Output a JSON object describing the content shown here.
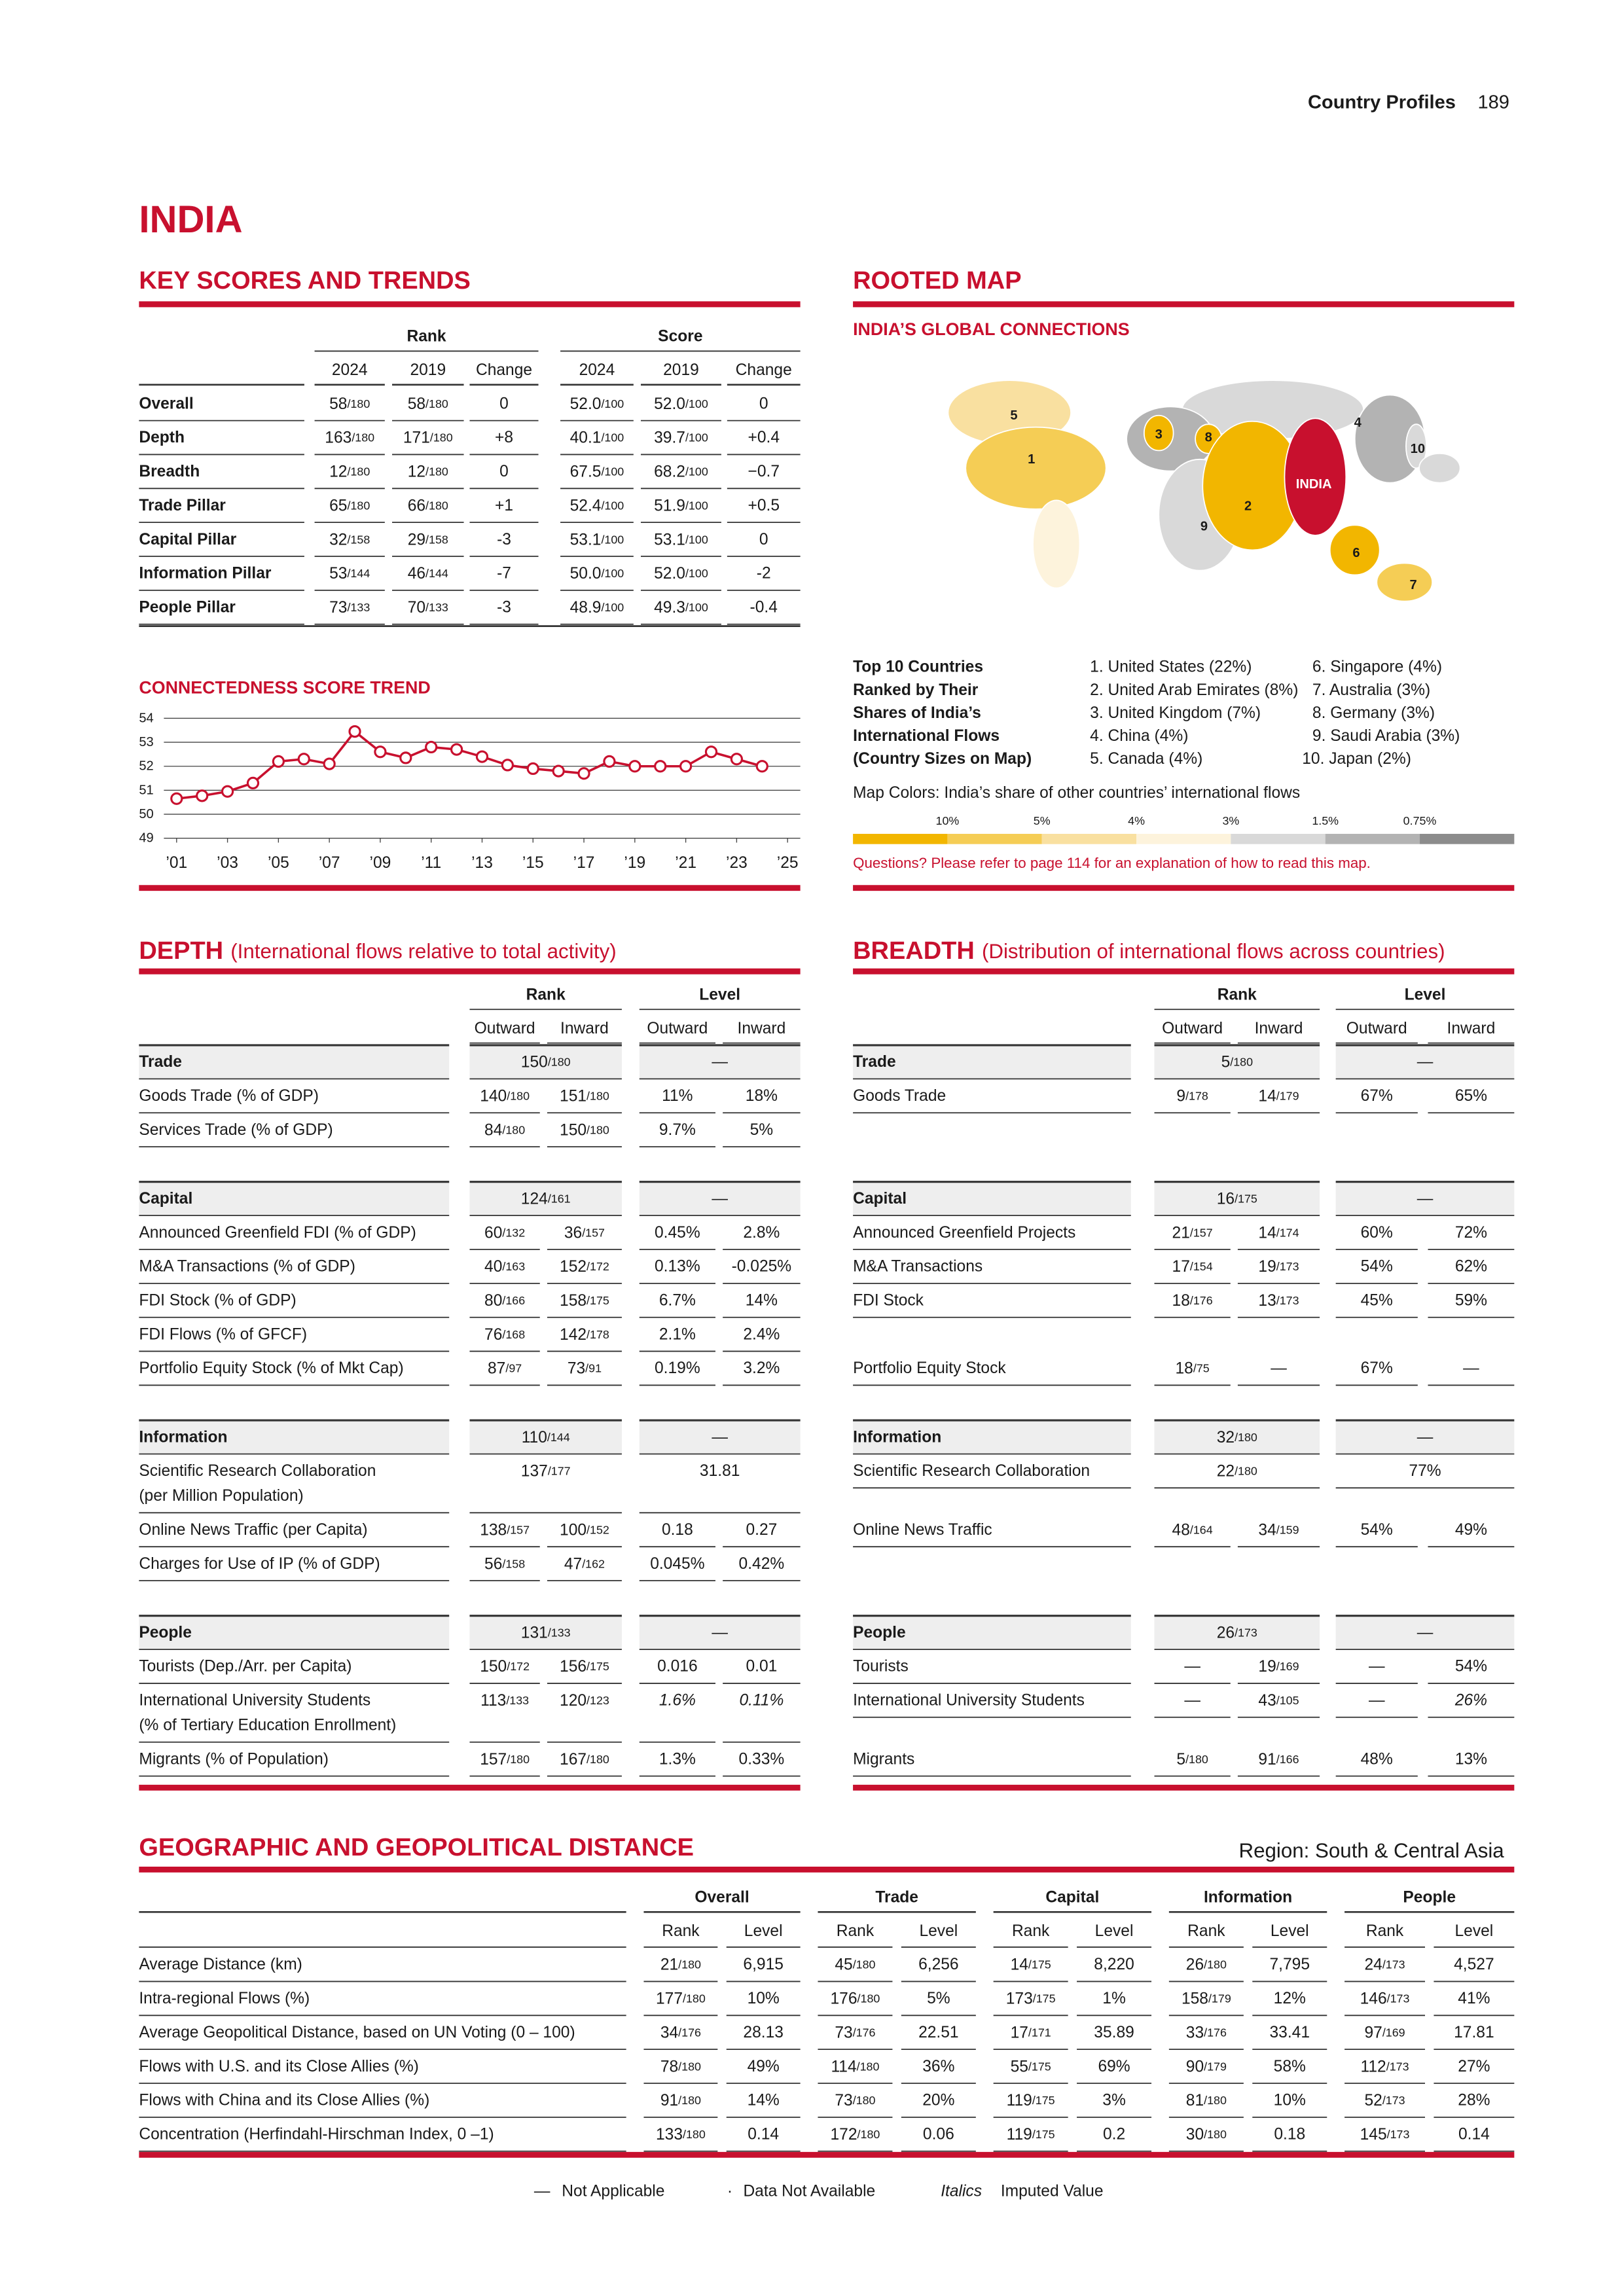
{
  "header": {
    "section": "Country Profiles",
    "page": "189",
    "country": "INDIA"
  },
  "key_scores": {
    "title": "KEY SCORES AND TRENDS",
    "groups": [
      "Rank",
      "Score"
    ],
    "columns": [
      "2024",
      "2019",
      "Change",
      "2024",
      "2019",
      "Change"
    ],
    "rows": [
      {
        "label": "Overall",
        "cells": [
          "58/180",
          "58/180",
          "0",
          "52.0/100",
          "52.0/100",
          "0"
        ]
      },
      {
        "label": "Depth",
        "cells": [
          "163/180",
          "171/180",
          "+8",
          "40.1/100",
          "39.7/100",
          "+0.4"
        ]
      },
      {
        "label": "Breadth",
        "cells": [
          "12/180",
          "12/180",
          "0",
          "67.5/100",
          "68.2/100",
          "−0.7"
        ]
      },
      {
        "label": "Trade Pillar",
        "cells": [
          "65/180",
          "66/180",
          "+1",
          "52.4/100",
          "51.9/100",
          "+0.5"
        ]
      },
      {
        "label": "Capital Pillar",
        "cells": [
          "32/158",
          "29/158",
          "-3",
          "53.1/100",
          "53.1/100",
          "0"
        ]
      },
      {
        "label": "Information Pillar",
        "cells": [
          "53/144",
          "46/144",
          "-7",
          "50.0/100",
          "52.0/100",
          "-2"
        ]
      },
      {
        "label": "People Pillar",
        "cells": [
          "73/133",
          "70/133",
          "-3",
          "48.9/100",
          "49.3/100",
          "-0.4"
        ]
      }
    ]
  },
  "chart_data": {
    "type": "line",
    "title": "CONNECTEDNESS SCORE TREND",
    "x": [
      2001,
      2002,
      2003,
      2004,
      2005,
      2006,
      2007,
      2008,
      2009,
      2010,
      2011,
      2012,
      2013,
      2014,
      2015,
      2016,
      2017,
      2018,
      2019,
      2020,
      2021,
      2022,
      2023,
      2024
    ],
    "series": [
      {
        "name": "Connectedness Score",
        "color": "#c8102e",
        "values": [
          50.65,
          50.77,
          50.95,
          51.3,
          52.2,
          52.3,
          52.1,
          53.45,
          52.6,
          52.35,
          52.8,
          52.7,
          52.4,
          52.05,
          51.9,
          51.8,
          51.7,
          52.2,
          52.0,
          52.0,
          52.0,
          52.6,
          52.3,
          52.0
        ]
      }
    ],
    "xlim": [
      2000.5,
      2025.5
    ],
    "xticks": [
      {
        "value": 2001,
        "label": "’01"
      },
      {
        "value": 2003,
        "label": "’03"
      },
      {
        "value": 2005,
        "label": "’05"
      },
      {
        "value": 2007,
        "label": "’07"
      },
      {
        "value": 2009,
        "label": "’09"
      },
      {
        "value": 2011,
        "label": "’11"
      },
      {
        "value": 2013,
        "label": "’13"
      },
      {
        "value": 2015,
        "label": "’15"
      },
      {
        "value": 2017,
        "label": "’17"
      },
      {
        "value": 2019,
        "label": "’19"
      },
      {
        "value": 2021,
        "label": "’21"
      },
      {
        "value": 2023,
        "label": "’23"
      },
      {
        "value": 2025,
        "label": "’25"
      }
    ],
    "ylim": [
      49,
      54
    ],
    "yticks": [
      49,
      50,
      51,
      52,
      53,
      54
    ],
    "grid": true
  },
  "rooted_map": {
    "title": "ROOTED MAP",
    "subtitle": "INDIA’S GLOBAL CONNECTIONS",
    "map_labels": [
      "1",
      "2",
      "3",
      "4",
      "5",
      "6",
      "7",
      "8",
      "9",
      "10"
    ],
    "map_country": "INDIA",
    "legend_title": [
      "Top 10 Countries",
      "Ranked by Their",
      "Shares of India’s",
      "International Flows",
      "(Country Sizes on Map)"
    ],
    "top10": [
      "1. United States (22%)",
      "2. United Arab Emirates (8%)",
      "3. United Kingdom (7%)",
      "4. China (4%)",
      "5. Canada (4%)",
      "6. Singapore (4%)",
      "7. Australia (3%)",
      "8. Germany (3%)",
      "9. Saudi Arabia (3%)",
      "10. Japan (2%)"
    ],
    "colors_title": "Map Colors: India’s share of other countries’ international flows",
    "scale_colors": [
      "#f2b600",
      "#f5cd55",
      "#f9e0a0",
      "#fdf3dc",
      "#d9d9d9",
      "#b3b3b3",
      "#8c8c8c"
    ],
    "scale_labels": [
      "10%",
      "5%",
      "4%",
      "3%",
      "1.5%",
      "0.75%"
    ],
    "note": "Questions? Please refer to page 114 for an explanation of how to read this map."
  },
  "depth": {
    "title": "DEPTH",
    "subtitle": "(International flows relative to total activity)",
    "groups": [
      "Rank",
      "Level"
    ],
    "columns": [
      "Outward",
      "Inward",
      "Outward",
      "Inward"
    ],
    "sections": [
      {
        "name": "Trade",
        "rank": "150/180",
        "level": "—",
        "rows": [
          {
            "label": [
              "Goods Trade (% of GDP)"
            ],
            "cells": [
              "140/180",
              "151/180",
              "11%",
              "18%"
            ]
          },
          {
            "label": [
              "Services Trade (% of GDP)"
            ],
            "cells": [
              "84/180",
              "150/180",
              "9.7%",
              "5%"
            ]
          }
        ]
      },
      {
        "name": "Capital",
        "rank": "124/161",
        "level": "—",
        "rows": [
          {
            "label": [
              "Announced Greenfield FDI (% of GDP)"
            ],
            "cells": [
              "60/132",
              "36/157",
              "0.45%",
              "2.8%"
            ]
          },
          {
            "label": [
              "M&A Transactions (% of GDP)"
            ],
            "cells": [
              "40/163",
              "152/172",
              "0.13%",
              "-0.025%"
            ]
          },
          {
            "label": [
              "FDI Stock (% of GDP)"
            ],
            "cells": [
              "80/166",
              "158/175",
              "6.7%",
              "14%"
            ]
          },
          {
            "label": [
              "FDI Flows (% of GFCF)"
            ],
            "cells": [
              "76/168",
              "142/178",
              "2.1%",
              "2.4%"
            ]
          },
          {
            "label": [
              "Portfolio Equity Stock (% of Mkt Cap)"
            ],
            "cells": [
              "87/97",
              "73/91",
              "0.19%",
              "3.2%"
            ]
          }
        ]
      },
      {
        "name": "Information",
        "rank": "110/144",
        "level": "—",
        "rows": [
          {
            "label": [
              "Scientific Research Collaboration",
              "(per Million Population)"
            ],
            "rank": "137/177",
            "level": "31.81"
          },
          {
            "label": [
              "Online News Traffic (per Capita)"
            ],
            "cells": [
              "138/157",
              "100/152",
              "0.18",
              "0.27"
            ]
          },
          {
            "label": [
              "Charges for Use of IP (% of GDP)"
            ],
            "cells": [
              "56/158",
              "47/162",
              "0.045%",
              "0.42%"
            ]
          }
        ]
      },
      {
        "name": "People",
        "rank": "131/133",
        "level": "—",
        "rows": [
          {
            "label": [
              "Tourists (Dep./Arr. per Capita)"
            ],
            "cells": [
              "150/172",
              "156/175",
              "0.016",
              "0.01"
            ]
          },
          {
            "label": [
              "International University Students",
              "(% of Tertiary Education Enrollment)"
            ],
            "cells": [
              "113/133",
              "120/123",
              {
                "text": "1.6%",
                "italic": true
              },
              {
                "text": "0.11%",
                "italic": true
              }
            ]
          },
          {
            "label": [
              "Migrants (% of Population)"
            ],
            "cells": [
              "157/180",
              "167/180",
              "1.3%",
              "0.33%"
            ]
          }
        ]
      }
    ]
  },
  "breadth": {
    "title": "BREADTH",
    "subtitle": "(Distribution of international flows across countries)",
    "groups": [
      "Rank",
      "Level"
    ],
    "columns": [
      "Outward",
      "Inward",
      "Outward",
      "Inward"
    ],
    "sections": [
      {
        "name": "Trade",
        "rank": "5/180",
        "level": "—",
        "rows": [
          {
            "label": [
              "Goods Trade"
            ],
            "cells": [
              "9/178",
              "14/179",
              "67%",
              "65%"
            ]
          },
          null
        ]
      },
      {
        "name": "Capital",
        "rank": "16/175",
        "level": "—",
        "rows": [
          {
            "label": [
              "Announced Greenfield Projects"
            ],
            "cells": [
              "21/157",
              "14/174",
              "60%",
              "72%"
            ]
          },
          {
            "label": [
              "M&A Transactions"
            ],
            "cells": [
              "17/154",
              "19/173",
              "54%",
              "62%"
            ]
          },
          {
            "label": [
              "FDI Stock"
            ],
            "cells": [
              "18/176",
              "13/173",
              "45%",
              "59%"
            ]
          },
          null,
          {
            "label": [
              "Portfolio Equity Stock"
            ],
            "cells": [
              "18/75",
              "—",
              "67%",
              "—"
            ]
          }
        ]
      },
      {
        "name": "Information",
        "rank": "32/180",
        "level": "—",
        "rows": [
          {
            "label": [
              "Scientific Research Collaboration"
            ],
            "rank": "22/180",
            "level": "77%"
          },
          {
            "label": [
              "Online News Traffic"
            ],
            "cells": [
              "48/164",
              "34/159",
              "54%",
              "49%"
            ]
          },
          null
        ]
      },
      {
        "name": "People",
        "rank": "26/173",
        "level": "—",
        "rows": [
          {
            "label": [
              "Tourists"
            ],
            "cells": [
              "—",
              "19/169",
              "—",
              "54%"
            ]
          },
          {
            "label": [
              "International University Students"
            ],
            "cells": [
              "—",
              "43/105",
              "—",
              {
                "text": "26%",
                "italic": true
              }
            ]
          },
          {
            "label": [
              "Migrants"
            ],
            "cells": [
              "5/180",
              "91/166",
              "48%",
              "13%"
            ]
          }
        ]
      }
    ]
  },
  "distance": {
    "title": "GEOGRAPHIC AND GEOPOLITICAL DISTANCE",
    "region": "Region: South & Central Asia",
    "groups": [
      "Overall",
      "Trade",
      "Capital",
      "Information",
      "People"
    ],
    "columns": [
      "Rank",
      "Level",
      "Rank",
      "Level",
      "Rank",
      "Level",
      "Rank",
      "Level",
      "Rank",
      "Level"
    ],
    "rows": [
      {
        "label": "Average Distance (km)",
        "cells": [
          "21/180",
          "6,915",
          "45/180",
          "6,256",
          "14/175",
          "8,220",
          "26/180",
          "7,795",
          "24/173",
          "4,527"
        ]
      },
      {
        "label": "Intra-regional Flows (%)",
        "cells": [
          "177/180",
          "10%",
          "176/180",
          "5%",
          "173/175",
          "1%",
          "158/179",
          "12%",
          "146/173",
          "41%"
        ]
      },
      {
        "label": "Average Geopolitical Distance, based on UN Voting (0 – 100)",
        "cells": [
          "34/176",
          "28.13",
          "73/176",
          "22.51",
          "17/171",
          "35.89",
          "33/176",
          "33.41",
          "97/169",
          "17.81"
        ]
      },
      {
        "label": "Flows with U.S. and its Close Allies (%)",
        "cells": [
          "78/180",
          "49%",
          "114/180",
          "36%",
          "55/175",
          "69%",
          "90/179",
          "58%",
          "112/173",
          "27%"
        ]
      },
      {
        "label": "Flows with China and its Close Allies (%)",
        "cells": [
          "91/180",
          "14%",
          "73/180",
          "20%",
          "119/175",
          "3%",
          "81/180",
          "10%",
          "52/173",
          "28%"
        ]
      },
      {
        "label": "Concentration (Herfindahl-Hirschman Index, 0 –1)",
        "cells": [
          "133/180",
          "0.14",
          "172/180",
          "0.06",
          "119/175",
          "0.2",
          "30/180",
          "0.18",
          "145/173",
          "0.14"
        ]
      }
    ]
  },
  "footer": [
    {
      "symbol": "—",
      "text": "Not Applicable"
    },
    {
      "symbol": "·",
      "text": "Data Not Available"
    },
    {
      "symbol": "Italics",
      "text": "Imputed Value"
    }
  ]
}
